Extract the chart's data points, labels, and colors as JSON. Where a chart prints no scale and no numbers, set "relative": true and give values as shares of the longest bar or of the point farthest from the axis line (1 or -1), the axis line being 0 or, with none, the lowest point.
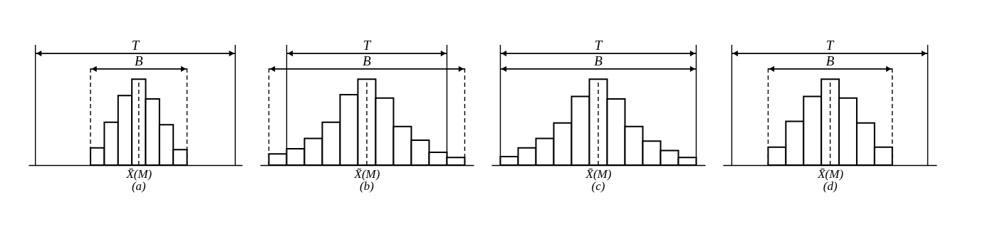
{
  "chart_data": [
    {
      "type": "bar",
      "relative": true,
      "title": "(a)",
      "xlabel": "X̄(M)",
      "annotations": [
        "T",
        "B"
      ],
      "color": "#ffffff",
      "categories": [
        null,
        null,
        null,
        null,
        null,
        null,
        null
      ],
      "values": [
        0.2,
        0.5,
        0.81,
        1,
        0.77,
        0.47,
        0.18
      ]
    },
    {
      "type": "bar",
      "relative": true,
      "title": "(b)",
      "xlabel": "X̄(M)",
      "annotations": [
        "T",
        "B"
      ],
      "color": "#ffffff",
      "categories": [
        null,
        null,
        null,
        null,
        null,
        null,
        null,
        null,
        null,
        null,
        null
      ],
      "values": [
        0.13,
        0.19,
        0.31,
        0.5,
        0.82,
        1,
        0.78,
        0.45,
        0.29,
        0.15,
        0.09
      ]
    },
    {
      "type": "bar",
      "relative": true,
      "title": "(c)",
      "xlabel": "X̄(M)",
      "annotations": [
        "T",
        "B"
      ],
      "color": "#ffffff",
      "categories": [
        null,
        null,
        null,
        null,
        null,
        null,
        null,
        null,
        null,
        null,
        null
      ],
      "values": [
        0.1,
        0.2,
        0.31,
        0.49,
        0.8,
        1,
        0.77,
        0.45,
        0.28,
        0.17,
        0.09
      ]
    },
    {
      "type": "bar",
      "relative": true,
      "title": "(d)",
      "xlabel": "X̄(M)",
      "annotations": [
        "T",
        "B"
      ],
      "color": "#ffffff",
      "categories": [
        null,
        null,
        null,
        null,
        null,
        null,
        null
      ],
      "values": [
        0.21,
        0.51,
        0.8,
        1,
        0.78,
        0.49,
        0.21
      ]
    }
  ]
}
